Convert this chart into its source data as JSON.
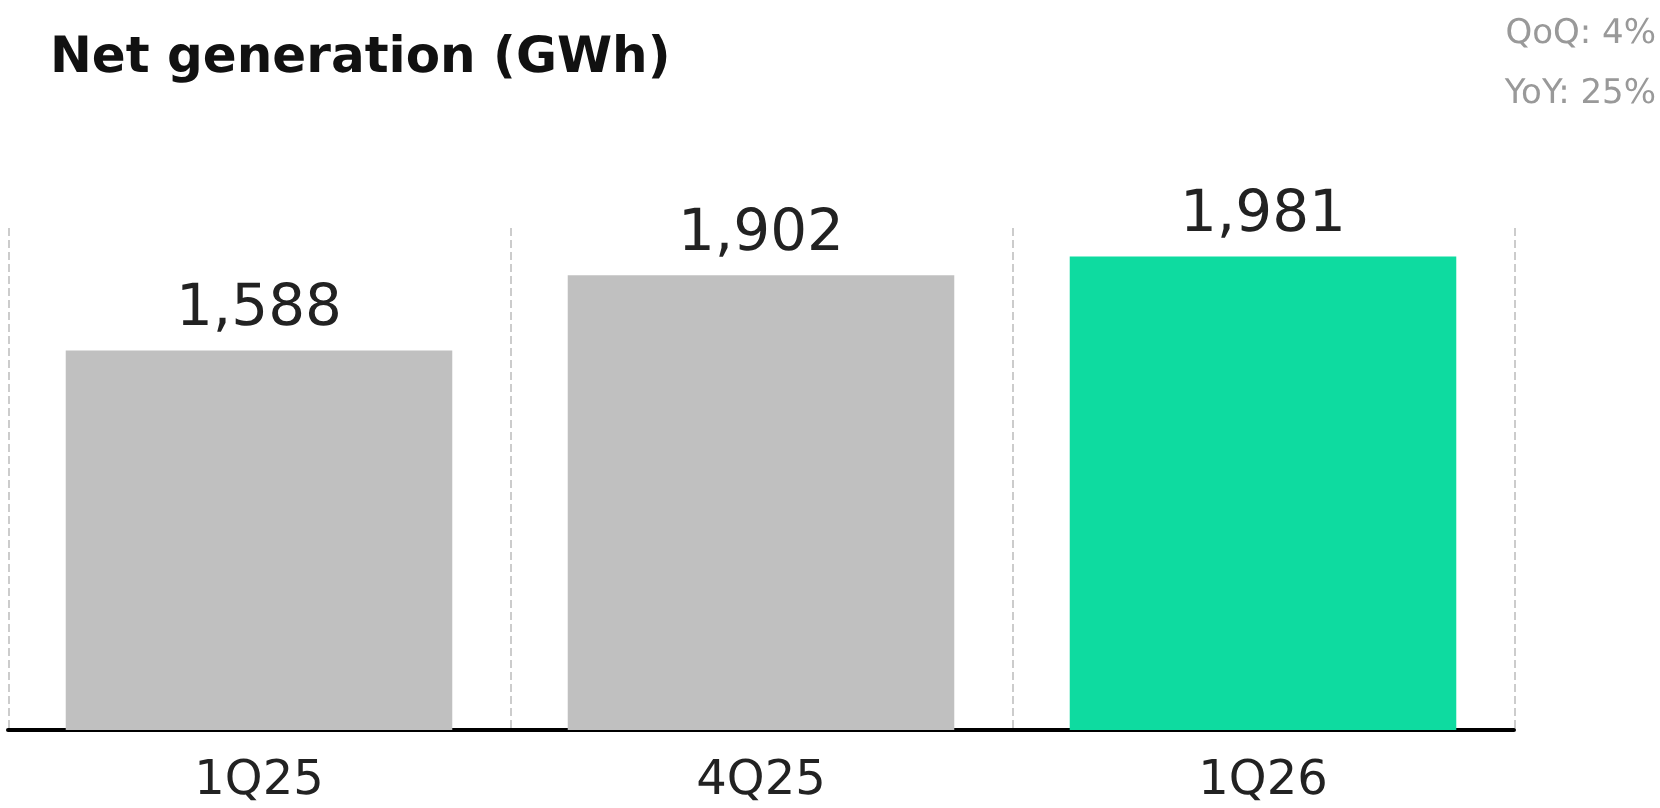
{
  "chart_data": {
    "type": "bar",
    "title": "Net generation (GWh)",
    "categories": [
      "1Q25",
      "4Q25",
      "1Q26"
    ],
    "values": [
      1588,
      1902,
      1981
    ],
    "colors": [
      "#c0c0c0",
      "#c0c0c0",
      "#0edba0"
    ],
    "value_labels": [
      "1,588",
      "1,902",
      "1,981"
    ],
    "grid": "x",
    "annotations": [
      "QoQ: 4%",
      "YoY: 25%"
    ]
  }
}
